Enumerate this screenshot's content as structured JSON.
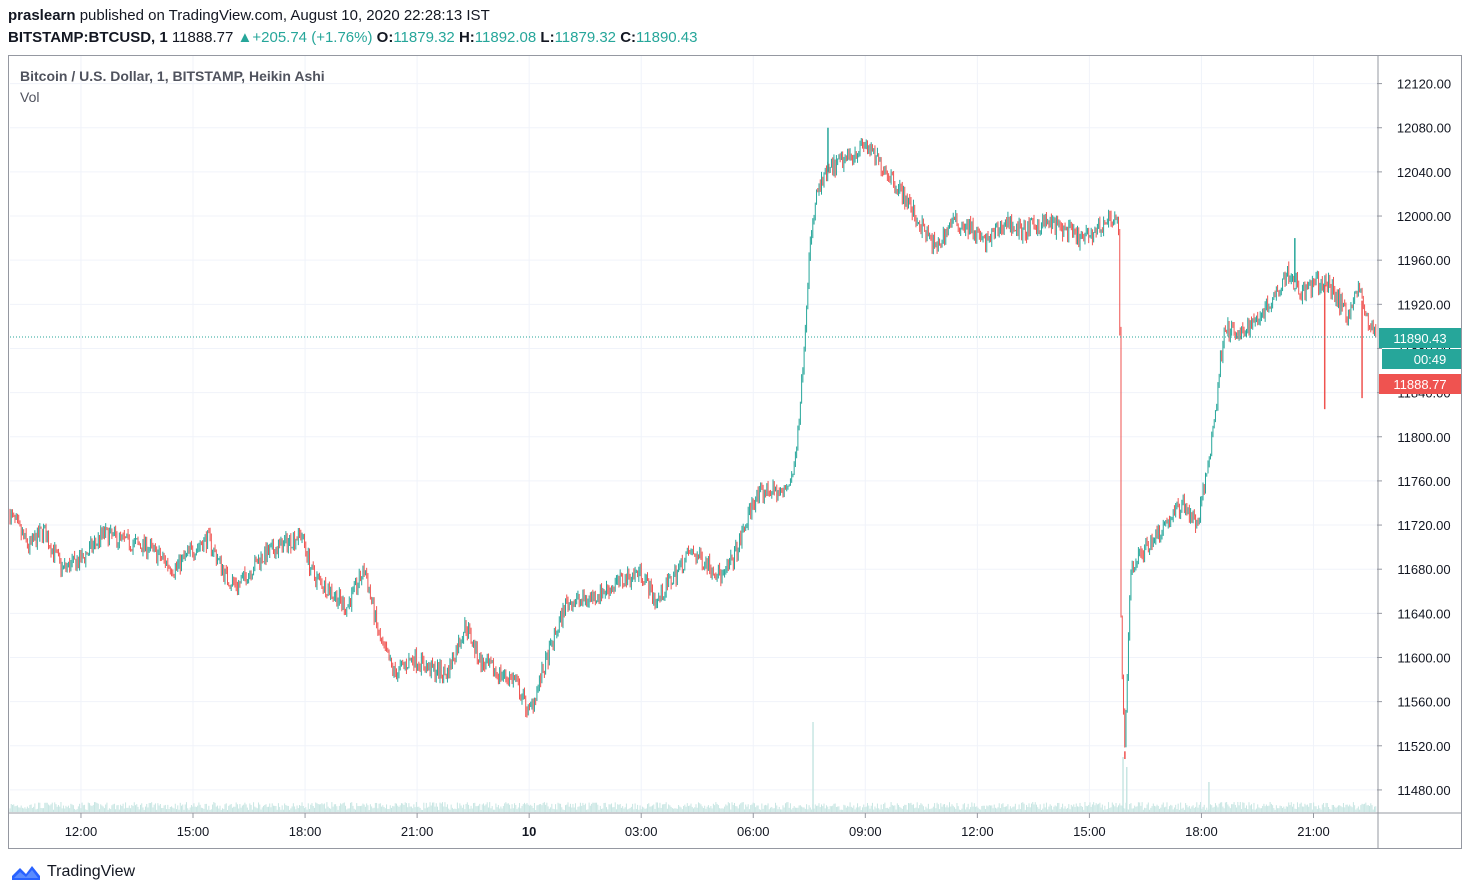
{
  "header": {
    "author": "praslearn",
    "published_text": "published on TradingView.com, August 10, 2020 22:28:13 IST",
    "symbol": "BITSTAMP:BTCUSD, 1",
    "last_price": "11888.77",
    "change_arrow": "▲",
    "change": "+205.74 (+1.76%)",
    "open_label": "O:",
    "open": "11879.32",
    "high_label": "H:",
    "high": "11892.08",
    "low_label": "L:",
    "low": "11879.32",
    "close_label": "C:",
    "close": "11890.43"
  },
  "legend": {
    "title": "Bitcoin / U.S. Dollar, 1, BITSTAMP, Heikin Ashi",
    "indicator": "Vol"
  },
  "price_tags": {
    "current": "11890.43",
    "countdown": "00:49",
    "bid": "11888.77"
  },
  "footer": {
    "brand": "TradingView"
  },
  "colors": {
    "up": "#26a69a",
    "down": "#ef5350",
    "volume": "#c8e6e3"
  },
  "chart_data": {
    "type": "candlestick",
    "style": "Heikin Ashi",
    "title": "Bitcoin / U.S. Dollar, 1, BITSTAMP, Heikin Ashi",
    "y_ticks": [
      12120,
      12080,
      12040,
      12000,
      11960,
      11920,
      11880,
      11840,
      11800,
      11760,
      11720,
      11680,
      11640,
      11600,
      11560,
      11520,
      11480
    ],
    "y_tick_labels": [
      "12120.00",
      "12080.00",
      "12040.00",
      "12000.00",
      "11960.00",
      "11920.00",
      "11880.00",
      "11840.00",
      "11800.00",
      "11760.00",
      "11720.00",
      "11680.00",
      "11640.00",
      "11600.00",
      "11560.00",
      "11520.00",
      "11480.00"
    ],
    "x_tick_labels": [
      "12:00",
      "15:00",
      "18:00",
      "21:00",
      "10",
      "03:00",
      "06:00",
      "09:00",
      "12:00",
      "15:00",
      "18:00",
      "21:00"
    ],
    "x_tick_hours": [
      12,
      15,
      18,
      21,
      24,
      27,
      30,
      33,
      36,
      39,
      42,
      45
    ],
    "x_range_hours": [
      10.1,
      46.7
    ],
    "y_range": [
      11460,
      12145
    ],
    "current_price": 11890.43,
    "price_path": [
      [
        10.1,
        11730
      ],
      [
        10.6,
        11700
      ],
      [
        11.0,
        11715
      ],
      [
        11.5,
        11680
      ],
      [
        12.0,
        11688
      ],
      [
        12.6,
        11712
      ],
      [
        13.2,
        11705
      ],
      [
        13.8,
        11700
      ],
      [
        14.5,
        11680
      ],
      [
        15.0,
        11698
      ],
      [
        15.4,
        11708
      ],
      [
        15.9,
        11672
      ],
      [
        16.2,
        11665
      ],
      [
        16.8,
        11690
      ],
      [
        17.3,
        11700
      ],
      [
        17.9,
        11712
      ],
      [
        18.2,
        11675
      ],
      [
        18.7,
        11660
      ],
      [
        19.1,
        11645
      ],
      [
        19.6,
        11680
      ],
      [
        20.0,
        11615
      ],
      [
        20.4,
        11585
      ],
      [
        20.9,
        11600
      ],
      [
        21.3,
        11590
      ],
      [
        21.8,
        11585
      ],
      [
        22.3,
        11630
      ],
      [
        22.7,
        11595
      ],
      [
        23.2,
        11585
      ],
      [
        23.6,
        11580
      ],
      [
        24.0,
        11550
      ],
      [
        24.5,
        11600
      ],
      [
        25.0,
        11650
      ],
      [
        25.5,
        11652
      ],
      [
        26.0,
        11660
      ],
      [
        26.6,
        11672
      ],
      [
        27.0,
        11678
      ],
      [
        27.4,
        11650
      ],
      [
        27.8,
        11670
      ],
      [
        28.3,
        11695
      ],
      [
        28.7,
        11688
      ],
      [
        29.2,
        11672
      ],
      [
        29.6,
        11700
      ],
      [
        30.0,
        11742
      ],
      [
        30.4,
        11752
      ],
      [
        30.8,
        11748
      ],
      [
        31.1,
        11770
      ],
      [
        31.3,
        11850
      ],
      [
        31.5,
        11965
      ],
      [
        31.7,
        12020
      ],
      [
        32.0,
        12040
      ],
      [
        32.4,
        12050
      ],
      [
        32.8,
        12060
      ],
      [
        33.0,
        12065
      ],
      [
        33.2,
        12055
      ],
      [
        33.6,
        12040
      ],
      [
        34.0,
        12020
      ],
      [
        34.5,
        11990
      ],
      [
        34.9,
        11970
      ],
      [
        35.3,
        11995
      ],
      [
        35.8,
        11990
      ],
      [
        36.2,
        11975
      ],
      [
        36.8,
        11995
      ],
      [
        37.2,
        11985
      ],
      [
        37.8,
        11995
      ],
      [
        38.3,
        11988
      ],
      [
        38.8,
        11978
      ],
      [
        39.3,
        11990
      ],
      [
        39.6,
        12000
      ],
      [
        39.8,
        11990
      ],
      [
        39.85,
        11600
      ],
      [
        39.95,
        11515
      ],
      [
        40.1,
        11680
      ],
      [
        40.5,
        11700
      ],
      [
        41.0,
        11720
      ],
      [
        41.5,
        11740
      ],
      [
        41.9,
        11720
      ],
      [
        42.2,
        11780
      ],
      [
        42.4,
        11830
      ],
      [
        42.6,
        11900
      ],
      [
        43.0,
        11890
      ],
      [
        43.4,
        11905
      ],
      [
        43.8,
        11920
      ],
      [
        44.3,
        11950
      ],
      [
        44.7,
        11930
      ],
      [
        45.1,
        11940
      ],
      [
        45.5,
        11935
      ],
      [
        45.9,
        11910
      ],
      [
        46.2,
        11935
      ],
      [
        46.5,
        11900
      ],
      [
        46.7,
        11890
      ]
    ],
    "wicks": [
      {
        "hour": 39.95,
        "low": 11508
      },
      {
        "hour": 32.0,
        "high": 12080
      },
      {
        "hour": 44.5,
        "high": 11980
      },
      {
        "hour": 45.3,
        "low": 11825
      },
      {
        "hour": 46.3,
        "low": 11835
      }
    ],
    "volume_spikes": [
      {
        "hour": 31.6,
        "relative": 0.9
      },
      {
        "hour": 39.9,
        "relative": 0.55
      },
      {
        "hour": 40.0,
        "relative": 0.45
      },
      {
        "hour": 42.2,
        "relative": 0.3
      }
    ]
  }
}
